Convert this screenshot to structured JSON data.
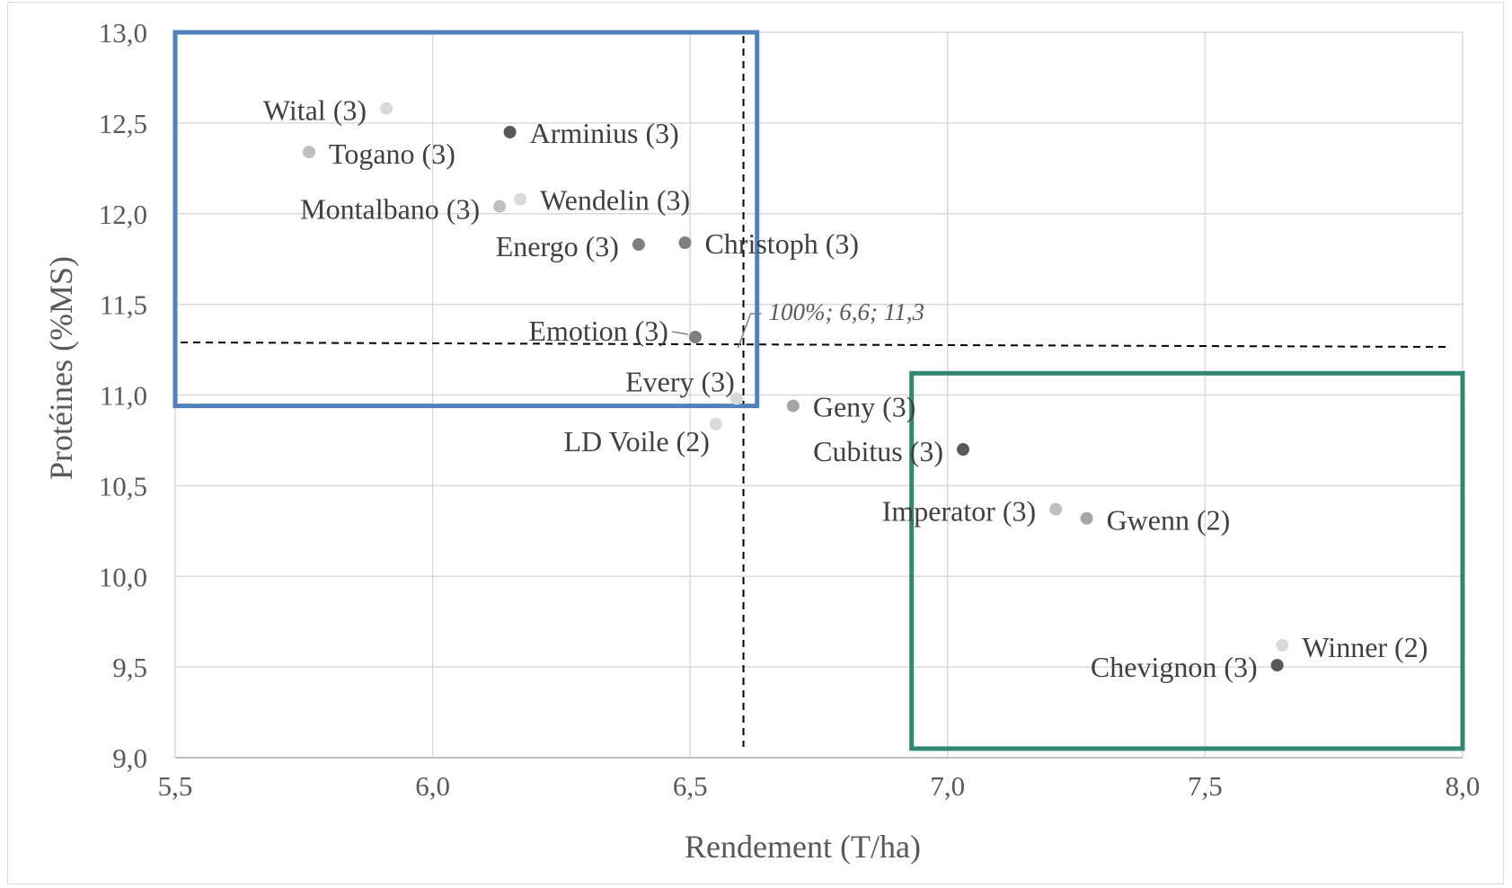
{
  "chart_data": {
    "type": "scatter",
    "xlabel": "Rendement (T/ha)",
    "ylabel": "Protéines (%MS)",
    "xlim": [
      5.5,
      8.0
    ],
    "ylim": [
      9.0,
      13.0
    ],
    "x_ticks": [
      "5,5",
      "6,0",
      "6,5",
      "7,0",
      "7,5",
      "8,0"
    ],
    "y_ticks": [
      "9,0",
      "9,5",
      "10,0",
      "10,5",
      "11,0",
      "11,5",
      "12,0",
      "12,5",
      "13,0"
    ],
    "grid": true,
    "points": [
      {
        "label": "Wital (3)",
        "x": 5.91,
        "y": 12.58,
        "color": "#d9d9d9"
      },
      {
        "label": "Togano (3)",
        "x": 5.76,
        "y": 12.34,
        "color": "#bfbfbf"
      },
      {
        "label": "Arminius (3)",
        "x": 6.15,
        "y": 12.45,
        "color": "#595959"
      },
      {
        "label": "Montalbano (3)",
        "x": 6.13,
        "y": 12.04,
        "color": "#bfbfbf"
      },
      {
        "label": "Wendelin (3)",
        "x": 6.17,
        "y": 12.08,
        "color": "#d9d9d9"
      },
      {
        "label": "Energo (3)",
        "x": 6.4,
        "y": 11.83,
        "color": "#7f7f7f"
      },
      {
        "label": "Christoph (3)",
        "x": 6.49,
        "y": 11.84,
        "color": "#7f7f7f"
      },
      {
        "label": "Emotion (3)",
        "x": 6.51,
        "y": 11.32,
        "color": "#7f7f7f"
      },
      {
        "label": "Every (3)",
        "x": 6.59,
        "y": 10.98,
        "color": "#d9d9d9"
      },
      {
        "label": "LD Voile (2)",
        "x": 6.55,
        "y": 10.84,
        "color": "#d9d9d9"
      },
      {
        "label": "Geny (3)",
        "x": 6.7,
        "y": 10.94,
        "color": "#a6a6a6"
      },
      {
        "label": "Cubitus (3)",
        "x": 7.03,
        "y": 10.7,
        "color": "#595959"
      },
      {
        "label": "Imperator (3)",
        "x": 7.21,
        "y": 10.37,
        "color": "#bfbfbf"
      },
      {
        "label": "Gwenn (2)",
        "x": 7.27,
        "y": 10.32,
        "color": "#a6a6a6"
      },
      {
        "label": "Winner (2)",
        "x": 7.65,
        "y": 9.62,
        "color": "#d9d9d9"
      },
      {
        "label": "Chevignon (3)",
        "x": 7.64,
        "y": 9.51,
        "color": "#595959"
      }
    ],
    "reference": {
      "x": 6.6,
      "y": 11.3,
      "label": "100%; 6,6; 11,3"
    },
    "highlight_boxes": [
      {
        "color": "#4f81bd",
        "x_range": [
          5.5,
          6.63
        ],
        "y_range": [
          10.94,
          13.0
        ]
      },
      {
        "color": "#31876f",
        "x_range": [
          6.93,
          8.0
        ],
        "y_range": [
          9.05,
          11.12
        ]
      }
    ]
  }
}
